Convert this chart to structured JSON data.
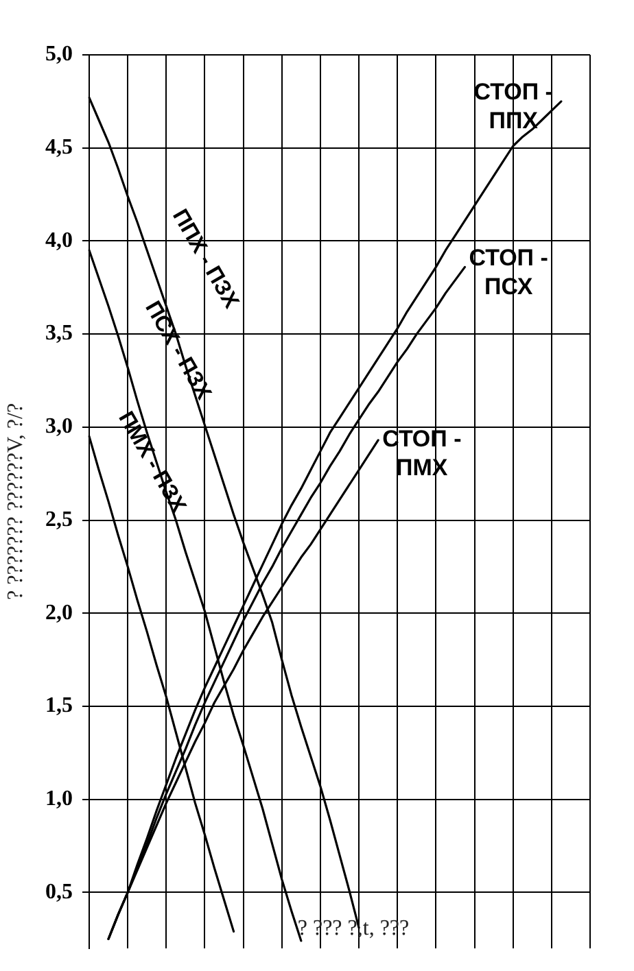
{
  "chart_data": {
    "type": "line",
    "xlabel": "? ??? ?,t, ???",
    "ylabel": "? ??????? ??????V, ?/?",
    "categories": [
      null,
      null,
      null,
      null,
      null,
      null,
      null,
      null,
      null,
      null,
      null,
      null,
      null,
      null,
      null,
      null,
      null,
      null,
      null,
      null,
      null,
      null,
      null,
      null,
      null,
      null,
      null,
      null,
      null,
      null,
      null,
      null,
      null,
      null,
      null,
      null,
      null,
      null,
      null,
      null,
      null,
      null,
      null,
      null,
      null,
      null,
      null,
      null,
      null,
      null,
      null,
      null,
      null
    ],
    "series": [
      {
        "name": "ППХ - ПЗХ",
        "color": "#000000",
        "values": [
          4.77,
          4.65,
          4.53,
          4.39,
          4.24,
          4.1,
          3.95,
          3.8,
          3.65,
          3.5,
          3.33,
          3.17,
          3.01,
          2.85,
          2.69,
          2.53,
          2.38,
          2.24,
          2.1,
          1.95,
          1.75,
          1.56,
          1.39,
          1.23,
          1.07,
          0.89,
          0.7,
          0.51,
          0.31,
          null,
          null,
          null,
          null,
          null,
          null,
          null,
          null,
          null,
          null,
          null,
          null,
          null,
          null,
          null,
          null,
          null,
          null,
          null,
          null,
          null,
          null,
          null,
          null
        ]
      },
      {
        "name": "ПСХ - ПЗХ",
        "color": "#000000",
        "values": [
          3.95,
          3.8,
          3.65,
          3.49,
          3.32,
          3.14,
          2.97,
          2.81,
          2.65,
          2.5,
          2.33,
          2.17,
          2.01,
          1.82,
          1.63,
          1.45,
          1.29,
          1.12,
          0.95,
          0.76,
          0.57,
          0.4,
          0.24,
          null,
          null,
          null,
          null,
          null,
          null,
          null,
          null,
          null,
          null,
          null,
          null,
          null,
          null,
          null,
          null,
          null,
          null,
          null,
          null,
          null,
          null,
          null,
          null,
          null,
          null,
          null,
          null,
          null,
          null
        ]
      },
      {
        "name": "ПМХ - ПЗХ",
        "color": "#000000",
        "values": [
          2.95,
          2.77,
          2.6,
          2.42,
          2.25,
          2.07,
          1.9,
          1.72,
          1.55,
          1.36,
          1.17,
          0.98,
          0.81,
          0.63,
          0.46,
          0.29,
          null,
          null,
          null,
          null,
          null,
          null,
          null,
          null,
          null,
          null,
          null,
          null,
          null,
          null,
          null,
          null,
          null,
          null,
          null,
          null,
          null,
          null,
          null,
          null,
          null,
          null,
          null,
          null,
          null,
          null,
          null,
          null,
          null,
          null,
          null,
          null,
          null
        ]
      },
      {
        "name": "СТОП - ППХ",
        "color": "#000000",
        "values": [
          null,
          null,
          0.25,
          0.38,
          0.5,
          0.65,
          0.79,
          0.94,
          1.08,
          1.22,
          1.35,
          1.48,
          1.6,
          1.71,
          1.82,
          1.93,
          2.04,
          2.15,
          2.26,
          2.37,
          2.48,
          2.58,
          2.67,
          2.77,
          2.87,
          2.97,
          3.05,
          3.13,
          3.21,
          3.29,
          3.37,
          3.45,
          3.53,
          3.62,
          3.7,
          3.78,
          3.86,
          3.95,
          4.03,
          4.11,
          4.19,
          4.27,
          4.35,
          4.43,
          4.51,
          4.56,
          4.6,
          4.65,
          4.7,
          4.75,
          null,
          null,
          null
        ]
      },
      {
        "name": "СТОП - ПСХ",
        "color": "#000000",
        "values": [
          null,
          null,
          0.25,
          0.38,
          0.5,
          0.63,
          0.76,
          0.9,
          1.03,
          1.15,
          1.27,
          1.4,
          1.52,
          1.63,
          1.74,
          1.85,
          1.96,
          2.06,
          2.16,
          2.25,
          2.35,
          2.44,
          2.53,
          2.62,
          2.7,
          2.79,
          2.87,
          2.96,
          3.04,
          3.12,
          3.19,
          3.27,
          3.35,
          3.42,
          3.5,
          3.57,
          3.64,
          3.72,
          3.79,
          3.86,
          null,
          null,
          null,
          null,
          null,
          null,
          null,
          null,
          null,
          null,
          null,
          null,
          null
        ]
      },
      {
        "name": "СТОП - ПМХ",
        "color": "#000000",
        "values": [
          null,
          null,
          0.25,
          0.38,
          0.5,
          0.62,
          0.74,
          0.86,
          0.98,
          1.09,
          1.2,
          1.31,
          1.41,
          1.52,
          1.61,
          1.7,
          1.8,
          1.89,
          1.98,
          2.06,
          2.14,
          2.22,
          2.3,
          2.37,
          2.45,
          2.53,
          2.61,
          2.69,
          2.77,
          2.85,
          2.93,
          null,
          null,
          null,
          null,
          null,
          null,
          null,
          null,
          null,
          null,
          null,
          null,
          null,
          null,
          null,
          null,
          null,
          null,
          null,
          null,
          null,
          null
        ]
      }
    ],
    "ylim": [
      0.2,
      5.0
    ],
    "yticks": [
      {
        "value": 0.5,
        "label": "0,5"
      },
      {
        "value": 1.0,
        "label": "1,0"
      },
      {
        "value": 1.5,
        "label": "1,5"
      },
      {
        "value": 2.0,
        "label": "2,0"
      },
      {
        "value": 2.5,
        "label": "2,5"
      },
      {
        "value": 3.0,
        "label": "3,0"
      },
      {
        "value": 3.5,
        "label": "3,5"
      },
      {
        "value": 4.0,
        "label": "4,0"
      },
      {
        "value": 4.5,
        "label": "4,5"
      },
      {
        "value": 5.0,
        "label": "5,0"
      }
    ],
    "grid": true,
    "tick_labels": "y"
  }
}
